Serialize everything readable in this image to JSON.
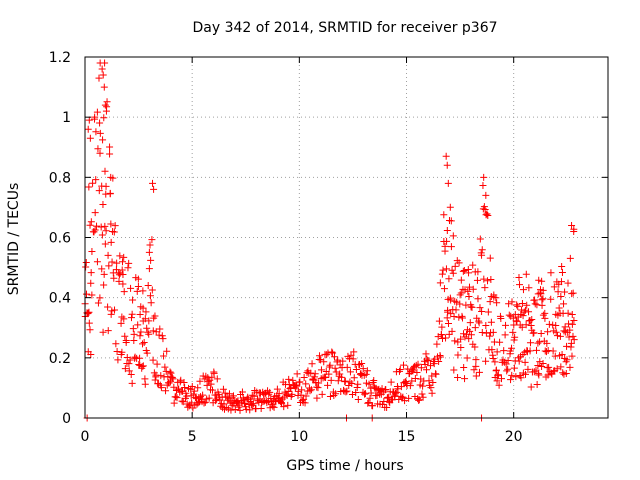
{
  "chart_data": {
    "type": "scatter",
    "title": "Day 342 of 2014, SRMTID for receiver p367",
    "xlabel": "GPS time / hours",
    "ylabel": "SRMTID / TECUs",
    "xlim": [
      0,
      24.4
    ],
    "ylim": [
      0,
      1.2
    ],
    "x_ticks": [
      0,
      5,
      10,
      15,
      20
    ],
    "x_tick_labels": [
      "0",
      "5",
      "10",
      "15",
      "20"
    ],
    "y_ticks": [
      0,
      0.2,
      0.4,
      0.6,
      0.8,
      1,
      1.2
    ],
    "y_tick_labels": [
      "0",
      "0.2",
      "0.4",
      "0.6",
      "0.8",
      "1",
      "1.2"
    ],
    "grid": true,
    "marker": "plus",
    "series": [
      {
        "name": "SRMTID",
        "color": "#ff0000",
        "profile": [
          [
            0.0,
            0.3
          ],
          [
            0.2,
            0.5
          ],
          [
            0.4,
            0.62
          ],
          [
            0.6,
            0.72
          ],
          [
            0.8,
            0.82
          ],
          [
            1.0,
            0.7
          ],
          [
            1.2,
            0.52
          ],
          [
            1.5,
            0.4
          ],
          [
            2.0,
            0.34
          ],
          [
            2.5,
            0.3
          ],
          [
            2.8,
            0.24
          ],
          [
            3.0,
            0.35
          ],
          [
            3.1,
            0.45
          ],
          [
            3.2,
            0.3
          ],
          [
            3.4,
            0.2
          ],
          [
            3.8,
            0.16
          ],
          [
            4.0,
            0.1
          ],
          [
            4.5,
            0.08
          ],
          [
            5.0,
            0.07
          ],
          [
            5.5,
            0.1
          ],
          [
            6.0,
            0.1
          ],
          [
            6.5,
            0.06
          ],
          [
            7.0,
            0.05
          ],
          [
            7.5,
            0.06
          ],
          [
            8.0,
            0.06
          ],
          [
            8.5,
            0.06
          ],
          [
            9.0,
            0.07
          ],
          [
            9.5,
            0.09
          ],
          [
            10.0,
            0.1
          ],
          [
            10.5,
            0.12
          ],
          [
            11.0,
            0.14
          ],
          [
            11.5,
            0.16
          ],
          [
            12.0,
            0.13
          ],
          [
            12.5,
            0.15
          ],
          [
            13.0,
            0.12
          ],
          [
            13.5,
            0.08
          ],
          [
            14.0,
            0.07
          ],
          [
            14.5,
            0.1
          ],
          [
            15.0,
            0.12
          ],
          [
            15.5,
            0.12
          ],
          [
            16.0,
            0.15
          ],
          [
            16.5,
            0.18
          ],
          [
            16.8,
            0.5
          ],
          [
            17.0,
            0.55
          ],
          [
            17.3,
            0.35
          ],
          [
            17.6,
            0.33
          ],
          [
            18.0,
            0.32
          ],
          [
            18.4,
            0.4
          ],
          [
            18.6,
            0.58
          ],
          [
            18.8,
            0.4
          ],
          [
            19.0,
            0.28
          ],
          [
            19.5,
            0.22
          ],
          [
            20.0,
            0.27
          ],
          [
            20.5,
            0.3
          ],
          [
            21.0,
            0.27
          ],
          [
            21.5,
            0.3
          ],
          [
            22.0,
            0.3
          ],
          [
            22.5,
            0.32
          ],
          [
            22.8,
            0.4
          ]
        ],
        "extremes": [
          [
            0.15,
            0.96
          ],
          [
            0.2,
            0.99
          ],
          [
            0.25,
            0.93
          ],
          [
            0.45,
            1.0
          ],
          [
            0.8,
            1.16
          ],
          [
            0.85,
            1.14
          ],
          [
            0.9,
            1.1
          ],
          [
            0.95,
            1.04
          ],
          [
            1.0,
            1.02
          ],
          [
            0.7,
            0.88
          ],
          [
            1.2,
            0.8
          ],
          [
            3.15,
            0.78
          ],
          [
            3.2,
            0.76
          ],
          [
            16.85,
            0.87
          ],
          [
            16.9,
            0.84
          ],
          [
            16.95,
            0.78
          ],
          [
            18.6,
            0.8
          ],
          [
            18.7,
            0.74
          ],
          [
            22.7,
            0.64
          ],
          [
            22.8,
            0.62
          ],
          [
            18.5,
            0.0
          ],
          [
            12.2,
            0.0
          ],
          [
            13.4,
            0.0
          ],
          [
            0.1,
            0.0
          ]
        ]
      }
    ]
  }
}
